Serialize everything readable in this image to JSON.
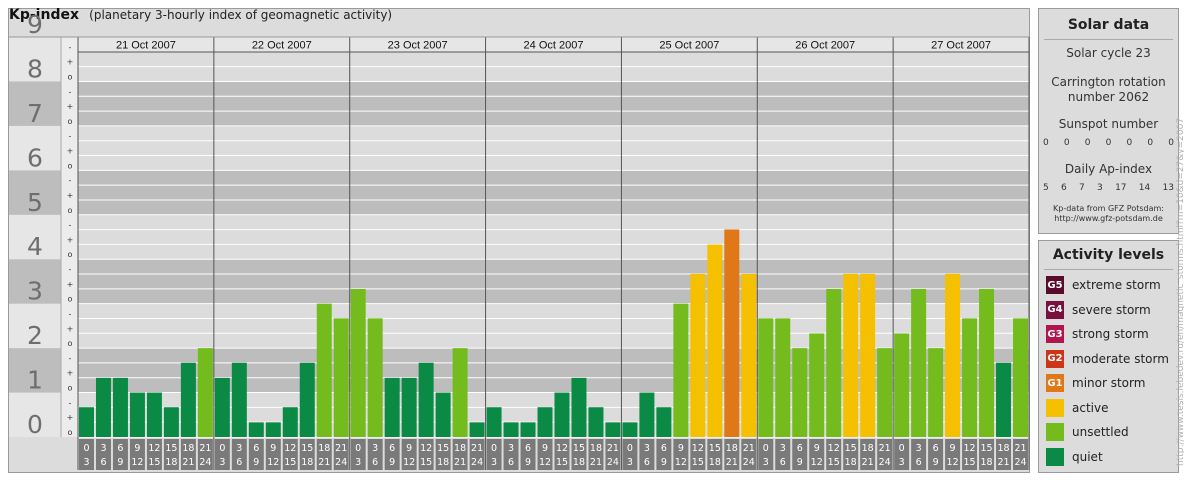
{
  "header": {
    "title": "Kp-index",
    "subtitle": "(planetary 3-hourly index of geomagnetic activity)"
  },
  "solar": {
    "title": "Solar data",
    "cycle": "Solar cycle 23",
    "carrington_line1": "Carrington rotation",
    "carrington_line2": "number 2062",
    "sunspot_label": "Sunspot number",
    "sunspot_values": [
      "0",
      "0",
      "0",
      "0",
      "0",
      "0",
      "0"
    ],
    "ap_label": "Daily Ap-index",
    "ap_values": [
      "5",
      "6",
      "7",
      "3",
      "17",
      "14",
      "13"
    ],
    "source_line1": "Kp-data from GFZ Potsdam:",
    "source_line2": "http://www.gfz-potsdam.de"
  },
  "activity": {
    "title": "Activity levels",
    "items": [
      {
        "badge": "G5",
        "label": "extreme storm",
        "color": "#5a0a2a"
      },
      {
        "badge": "G4",
        "label": "severe storm",
        "color": "#7a1040"
      },
      {
        "badge": "G3",
        "label": "strong storm",
        "color": "#b0154e"
      },
      {
        "badge": "G2",
        "label": "moderate storm",
        "color": "#cc3515"
      },
      {
        "badge": "G1",
        "label": "minor storm",
        "color": "#e07818"
      },
      {
        "badge": "",
        "label": "active",
        "color": "#f5c000"
      },
      {
        "badge": "",
        "label": "unsettled",
        "color": "#74bc1e"
      },
      {
        "badge": "",
        "label": "quiet",
        "color": "#0a8a45"
      }
    ]
  },
  "watermark": "http://www.tesis.lebedev.ru/en/magnetic_storms.html?m=10&d=27&y=2007",
  "chart_data": {
    "type": "bar",
    "title": "Kp-index",
    "ylim": [
      0,
      9
    ],
    "y_ticks": [
      "0",
      "1",
      "2",
      "3",
      "4",
      "5",
      "6",
      "7",
      "8",
      "9"
    ],
    "minor_tick_labels": [
      "o",
      "+",
      "-"
    ],
    "days": [
      "21 Oct 2007",
      "22 Oct 2007",
      "23 Oct 2007",
      "24 Oct 2007",
      "25 Oct 2007",
      "26 Oct 2007",
      "27 Oct 2007"
    ],
    "interval_start_labels": [
      "0",
      "3",
      "6",
      "9",
      "12",
      "15",
      "18",
      "21"
    ],
    "interval_end_labels": [
      "3",
      "6",
      "9",
      "12",
      "15",
      "18",
      "21",
      "24"
    ],
    "values": [
      [
        0.67,
        1.33,
        1.33,
        1.0,
        1.0,
        0.67,
        1.67,
        2.0
      ],
      [
        1.33,
        1.67,
        0.33,
        0.33,
        0.67,
        1.67,
        3.0,
        2.67
      ],
      [
        3.33,
        2.67,
        1.33,
        1.33,
        1.67,
        1.0,
        2.0,
        0.33
      ],
      [
        0.67,
        0.33,
        0.33,
        0.67,
        1.0,
        1.33,
        0.67,
        0.33
      ],
      [
        0.33,
        1.0,
        0.67,
        3.0,
        3.67,
        4.33,
        4.67,
        3.67
      ],
      [
        2.67,
        2.67,
        2.0,
        2.33,
        3.33,
        3.67,
        3.67,
        2.0
      ],
      [
        2.33,
        3.33,
        2.0,
        3.67,
        2.67,
        3.33,
        1.67,
        2.67
      ]
    ],
    "colors": {
      "quiet": "#0a8a45",
      "unsettled": "#74bc1e",
      "active": "#f5c000",
      "minor_storm": "#e07818",
      "band_dark": "#bdbdbd",
      "band_light": "#dcdcdc",
      "grid": "#ffffff",
      "axis_bg": "#7a7a7a"
    }
  }
}
